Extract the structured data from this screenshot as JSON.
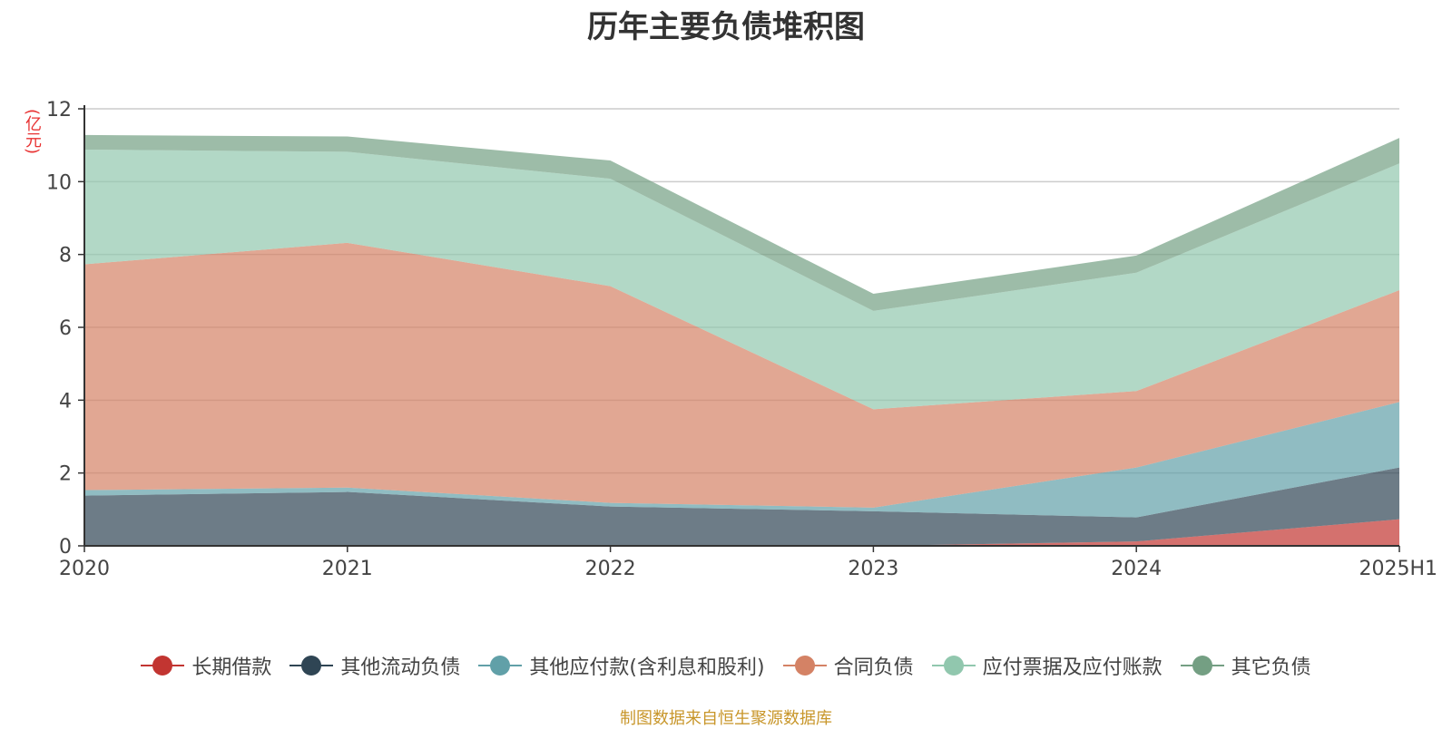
{
  "chart_data": {
    "type": "area",
    "stacked": true,
    "title": "历年主要负债堆积图",
    "unit_label": "(亿元)",
    "categories": [
      "2020",
      "2021",
      "2022",
      "2023",
      "2024",
      "2025H1"
    ],
    "y_ticks": [
      "0",
      "2",
      "4",
      "6",
      "8",
      "10",
      "12"
    ],
    "ylim": [
      0,
      12
    ],
    "grid": true,
    "legend_position": "bottom",
    "series": [
      {
        "name": "长期借款",
        "values": [
          0,
          0,
          0,
          0,
          0.12,
          0.73
        ],
        "color": "#c23531"
      },
      {
        "name": "其他流动负债",
        "values": [
          1.38,
          1.48,
          1.08,
          0.95,
          0.66,
          1.42
        ],
        "color": "#2f4554"
      },
      {
        "name": "其他应付款(含利息和股利)",
        "values": [
          0.15,
          0.12,
          0.1,
          0.1,
          1.37,
          1.8
        ],
        "color": "#61a0a8"
      },
      {
        "name": "合同负债",
        "values": [
          6.2,
          6.72,
          5.95,
          2.7,
          2.1,
          3.07
        ],
        "color": "#d48265"
      },
      {
        "name": "应付票据及应付账款",
        "values": [
          3.15,
          2.5,
          2.95,
          2.7,
          3.25,
          3.48
        ],
        "color": "#91c7ae"
      },
      {
        "name": "其它负债",
        "values": [
          0.4,
          0.42,
          0.5,
          0.47,
          0.47,
          0.7
        ],
        "color": "#749f83"
      }
    ]
  },
  "source_note": "制图数据来自恒生聚源数据库"
}
